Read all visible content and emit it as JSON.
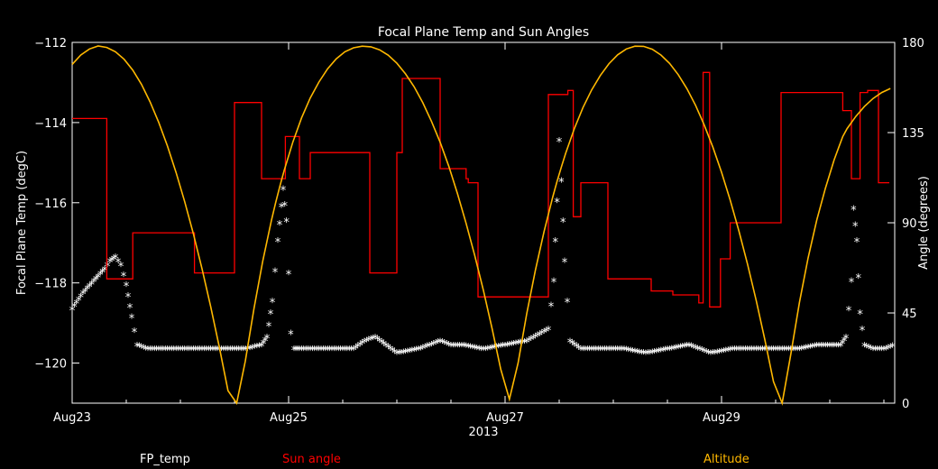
{
  "chart_data": {
    "type": "line",
    "title": "Focal Plane Temp and Sun Angles",
    "xlabel": "2013",
    "ylabel_left": "Focal Plane Temp (degC)",
    "ylabel_right": "Angle (degrees)",
    "x_ticks": [
      "Aug23",
      "Aug25",
      "Aug27",
      "Aug29"
    ],
    "x_range_days": [
      0,
      7.6
    ],
    "y_left_range": [
      -121,
      -112
    ],
    "y_left_ticks": [
      -120,
      -118,
      -116,
      -114,
      -112
    ],
    "y_right_range": [
      0,
      180
    ],
    "y_right_ticks": [
      0,
      45,
      90,
      135,
      180
    ],
    "colors": {
      "fp_temp": "#ffffff",
      "sun_angle": "#ff0000",
      "altitude": "#ffb800"
    },
    "legend": [
      "FP_temp",
      "Sun angle",
      "Altitude"
    ],
    "series": [
      {
        "name": "FP_temp",
        "axis": "left",
        "style": "markers",
        "x": [
          0.0,
          0.1,
          0.2,
          0.3,
          0.35,
          0.4,
          0.45,
          0.5,
          0.55,
          0.6,
          0.7,
          0.8,
          1.0,
          1.2,
          1.4,
          1.6,
          1.75,
          1.8,
          1.85,
          1.9,
          1.95,
          1.98,
          2.0,
          2.02,
          2.05,
          2.1,
          2.2,
          2.4,
          2.6,
          2.7,
          2.8,
          2.9,
          3.0,
          3.2,
          3.4,
          3.5,
          3.6,
          3.8,
          4.0,
          4.2,
          4.4,
          4.45,
          4.48,
          4.5,
          4.52,
          4.55,
          4.6,
          4.7,
          4.9,
          5.1,
          5.3,
          5.5,
          5.7,
          5.9,
          6.1,
          6.3,
          6.5,
          6.7,
          6.9,
          7.1,
          7.15,
          7.2,
          7.22,
          7.25,
          7.28,
          7.32,
          7.4,
          7.5,
          7.6
        ],
        "y": [
          -118.7,
          -118.3,
          -118.0,
          -117.7,
          -117.5,
          -117.4,
          -117.6,
          -118.1,
          -118.9,
          -119.6,
          -119.7,
          -119.7,
          -119.7,
          -119.7,
          -119.7,
          -119.7,
          -119.6,
          -119.4,
          -118.5,
          -117.0,
          -115.7,
          -116.5,
          -117.8,
          -119.3,
          -119.7,
          -119.7,
          -119.7,
          -119.7,
          -119.7,
          -119.5,
          -119.4,
          -119.6,
          -119.8,
          -119.7,
          -119.5,
          -119.6,
          -119.6,
          -119.7,
          -119.6,
          -119.5,
          -119.2,
          -118.0,
          -116.0,
          -114.5,
          -115.5,
          -117.5,
          -119.5,
          -119.7,
          -119.7,
          -119.7,
          -119.8,
          -119.7,
          -119.6,
          -119.8,
          -119.7,
          -119.7,
          -119.7,
          -119.7,
          -119.6,
          -119.6,
          -119.4,
          -118.0,
          -116.2,
          -117.0,
          -118.8,
          -119.6,
          -119.7,
          -119.7,
          -119.6
        ]
      },
      {
        "name": "Sun angle",
        "axis": "right",
        "style": "steps",
        "x": [
          0.0,
          0.32,
          0.32,
          0.56,
          0.56,
          1.13,
          1.13,
          1.5,
          1.5,
          1.75,
          1.75,
          1.97,
          1.97,
          2.1,
          2.1,
          2.2,
          2.2,
          2.75,
          2.75,
          3.0,
          3.0,
          3.05,
          3.05,
          3.4,
          3.4,
          3.64,
          3.64,
          3.66,
          3.66,
          3.75,
          3.75,
          4.4,
          4.4,
          4.55,
          4.55,
          4.58,
          4.58,
          4.63,
          4.63,
          4.7,
          4.7,
          4.95,
          4.95,
          5.35,
          5.35,
          5.55,
          5.55,
          5.79,
          5.79,
          5.83,
          5.83,
          5.89,
          5.89,
          5.99,
          5.99,
          6.08,
          6.08,
          6.55,
          6.55,
          7.12,
          7.12,
          7.2,
          7.2,
          7.28,
          7.28,
          7.35,
          7.35,
          7.45,
          7.45,
          7.55
        ],
        "y": [
          142,
          142,
          62,
          62,
          85,
          85,
          65,
          65,
          150,
          150,
          112,
          112,
          133,
          133,
          112,
          112,
          125,
          125,
          65,
          65,
          125,
          125,
          162,
          162,
          117,
          117,
          112,
          112,
          110,
          110,
          53,
          53,
          154,
          154,
          154,
          154,
          156,
          156,
          93,
          93,
          110,
          110,
          62,
          62,
          56,
          56,
          54,
          54,
          50,
          50,
          165,
          165,
          48,
          48,
          72,
          72,
          90,
          90,
          155,
          155,
          146,
          146,
          112,
          112,
          155,
          155,
          156,
          156,
          110,
          110
        ]
      },
      {
        "name": "Altitude",
        "axis": "right",
        "style": "line",
        "x": [
          0.0,
          0.08,
          0.16,
          0.24,
          0.32,
          0.4,
          0.48,
          0.56,
          0.64,
          0.72,
          0.8,
          0.88,
          0.96,
          1.04,
          1.12,
          1.2,
          1.28,
          1.36,
          1.44,
          1.52,
          1.6,
          1.68,
          1.76,
          1.84,
          1.88,
          1.92,
          1.96,
          2.04,
          2.12,
          2.2,
          2.28,
          2.36,
          2.44,
          2.52,
          2.6,
          2.68,
          2.76,
          2.84,
          2.92,
          3.0,
          3.08,
          3.16,
          3.24,
          3.32,
          3.4,
          3.48,
          3.56,
          3.64,
          3.72,
          3.8,
          3.88,
          3.96,
          4.04,
          4.12,
          4.2,
          4.28,
          4.36,
          4.44,
          4.48,
          4.52,
          4.56,
          4.64,
          4.72,
          4.8,
          4.88,
          4.96,
          5.04,
          5.12,
          5.2,
          5.28,
          5.36,
          5.44,
          5.52,
          5.6,
          5.68,
          5.76,
          5.84,
          5.92,
          6.0,
          6.08,
          6.16,
          6.24,
          6.32,
          6.4,
          6.48,
          6.56,
          6.64,
          6.72,
          6.8,
          6.88,
          6.96,
          7.04,
          7.08,
          7.12,
          7.16,
          7.24,
          7.32,
          7.4,
          7.48,
          7.56
        ],
        "y": [
          169,
          173.7,
          176.7,
          178.2,
          177.5,
          175.3,
          171.6,
          166.2,
          159.1,
          150.3,
          140.1,
          128.4,
          115.1,
          100.5,
          84.5,
          67.0,
          48.2,
          27.9,
          6.2,
          0,
          21.0,
          47.2,
          70.6,
          90.9,
          100.0,
          108.4,
          116.3,
          130.4,
          142.4,
          152.3,
          160.2,
          166.8,
          171.8,
          175.3,
          177.3,
          178.1,
          177.8,
          176.3,
          173.6,
          169.6,
          164.3,
          157.8,
          149.9,
          140.6,
          130.2,
          118.2,
          104.6,
          89.7,
          73.6,
          56.2,
          37.2,
          16.9,
          2.0,
          20.0,
          44.6,
          66.3,
          85.6,
          102.8,
          110.6,
          117.8,
          124.7,
          137.0,
          147.5,
          156.3,
          163.5,
          169.4,
          173.8,
          176.7,
          178.1,
          178.0,
          176.6,
          173.7,
          169.5,
          163.9,
          156.9,
          148.6,
          138.8,
          127.7,
          115.2,
          101.3,
          86.0,
          69.4,
          51.3,
          31.7,
          10.7,
          0,
          24.4,
          50.3,
          72.5,
          91.4,
          107.3,
          121.3,
          127.2,
          133.0,
          137.0,
          143.0,
          148.0,
          152.0,
          155.0,
          157.0
        ]
      }
    ]
  }
}
